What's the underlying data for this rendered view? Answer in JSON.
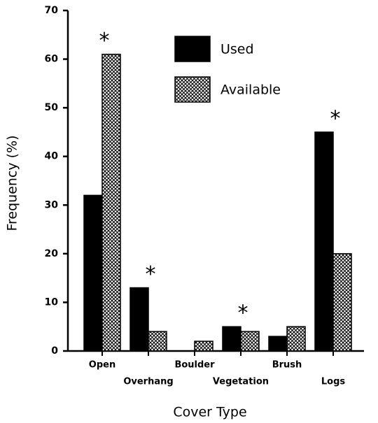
{
  "chart_data": {
    "type": "bar",
    "xlabel": "Cover Type",
    "ylabel": "Frequency (%)",
    "categories": [
      "Open",
      "Overhang",
      "Boulder",
      "Vegetation",
      "Brush",
      "Logs"
    ],
    "series": [
      {
        "name": "Used",
        "color": "#000000",
        "values": [
          32,
          13,
          0,
          5,
          3,
          45
        ]
      },
      {
        "name": "Available",
        "color": "#000000",
        "pattern": "crosshatch",
        "values": [
          61,
          4,
          2,
          4,
          5,
          20
        ]
      }
    ],
    "annotations": [
      {
        "text": "*",
        "category": "Open"
      },
      {
        "text": "*",
        "category": "Overhang"
      },
      {
        "text": "*",
        "category": "Vegetation"
      },
      {
        "text": "*",
        "category": "Logs"
      }
    ],
    "ylim": [
      0,
      70
    ],
    "yticks": [
      0,
      10,
      20,
      30,
      40,
      50,
      60,
      70
    ],
    "grid": false
  }
}
